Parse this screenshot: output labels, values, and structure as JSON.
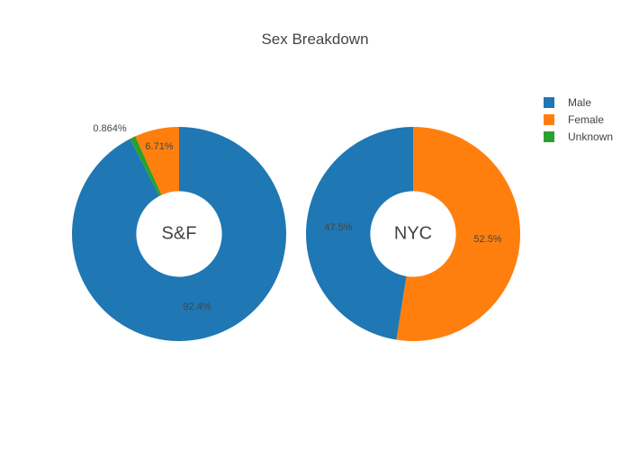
{
  "title": "Sex Breakdown",
  "colors": {
    "male": "#1f77b4",
    "female": "#ff7f0e",
    "unknown": "#2ca02c",
    "text": "#444444",
    "background": "#ffffff"
  },
  "legend": {
    "items": [
      {
        "label": "Male",
        "color": "#1f77b4"
      },
      {
        "label": "Female",
        "color": "#ff7f0e"
      },
      {
        "label": "Unknown",
        "color": "#2ca02c"
      }
    ]
  },
  "chart_data": [
    {
      "type": "pie",
      "title": "Sex Breakdown",
      "center_label": "S&F",
      "hole": 0.4,
      "legend_position": "right",
      "slices": [
        {
          "label": "Male",
          "value_pct": 92.4,
          "color": "#1f77b4",
          "text": "92.4%",
          "text_position": "inside"
        },
        {
          "label": "Unknown",
          "value_pct": 0.864,
          "color": "#2ca02c",
          "text": "0.864%",
          "text_position": "outside"
        },
        {
          "label": "Female",
          "value_pct": 6.71,
          "color": "#ff7f0e",
          "text": "6.71%",
          "text_position": "inside"
        }
      ]
    },
    {
      "type": "pie",
      "title": "Sex Breakdown",
      "center_label": "NYC",
      "hole": 0.4,
      "legend_position": "right",
      "slices": [
        {
          "label": "Female",
          "value_pct": 52.5,
          "color": "#ff7f0e",
          "text": "52.5%",
          "text_position": "inside"
        },
        {
          "label": "Male",
          "value_pct": 47.5,
          "color": "#1f77b4",
          "text": "47.5%",
          "text_position": "inside"
        }
      ]
    }
  ]
}
